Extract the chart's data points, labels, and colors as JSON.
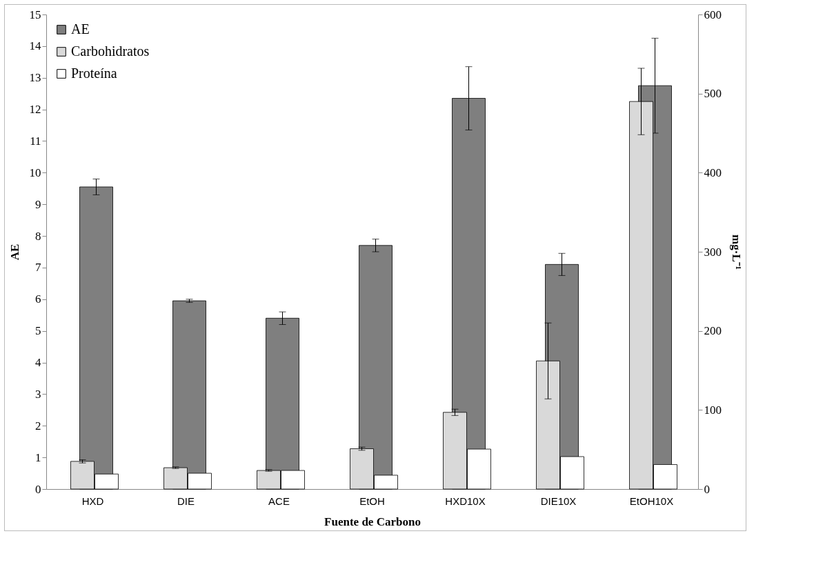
{
  "chart_data": {
    "type": "bar",
    "xlabel": "Fuente de Carbono",
    "ylabel": "AE",
    "y2label": "mg·L⁻¹",
    "categories": [
      "HXD",
      "DIE",
      "ACE",
      "EtOH",
      "HXD10X",
      "DIE10X",
      "EtOH10X"
    ],
    "series": [
      {
        "name": "AE",
        "color": "#7f7f7f",
        "values": [
          9.55,
          5.95,
          5.4,
          7.7,
          12.35,
          7.1,
          12.75
        ],
        "errors": [
          0.25,
          0.05,
          0.2,
          0.2,
          1.0,
          0.35,
          1.5
        ]
      },
      {
        "name": "Carbohidratos",
        "color": "#d9d9d9",
        "axis": "y2",
        "values": [
          35,
          27,
          23.5,
          51,
          97,
          162,
          490
        ],
        "errors": [
          2,
          1,
          1,
          2,
          4,
          48,
          42
        ]
      },
      {
        "name": "Proteína",
        "color": "#ffffff",
        "axis": "y2",
        "values": [
          19,
          20,
          23.5,
          17.5,
          50.5,
          41,
          31
        ]
      }
    ],
    "ylim": [
      0,
      15
    ],
    "yticks": [
      0,
      1,
      2,
      3,
      4,
      5,
      6,
      7,
      8,
      9,
      10,
      11,
      12,
      13,
      14,
      15
    ],
    "y2lim": [
      0,
      600
    ],
    "y2ticks": [
      0,
      100,
      200,
      300,
      400,
      500,
      600
    ],
    "legend": "top left",
    "grid": false
  }
}
